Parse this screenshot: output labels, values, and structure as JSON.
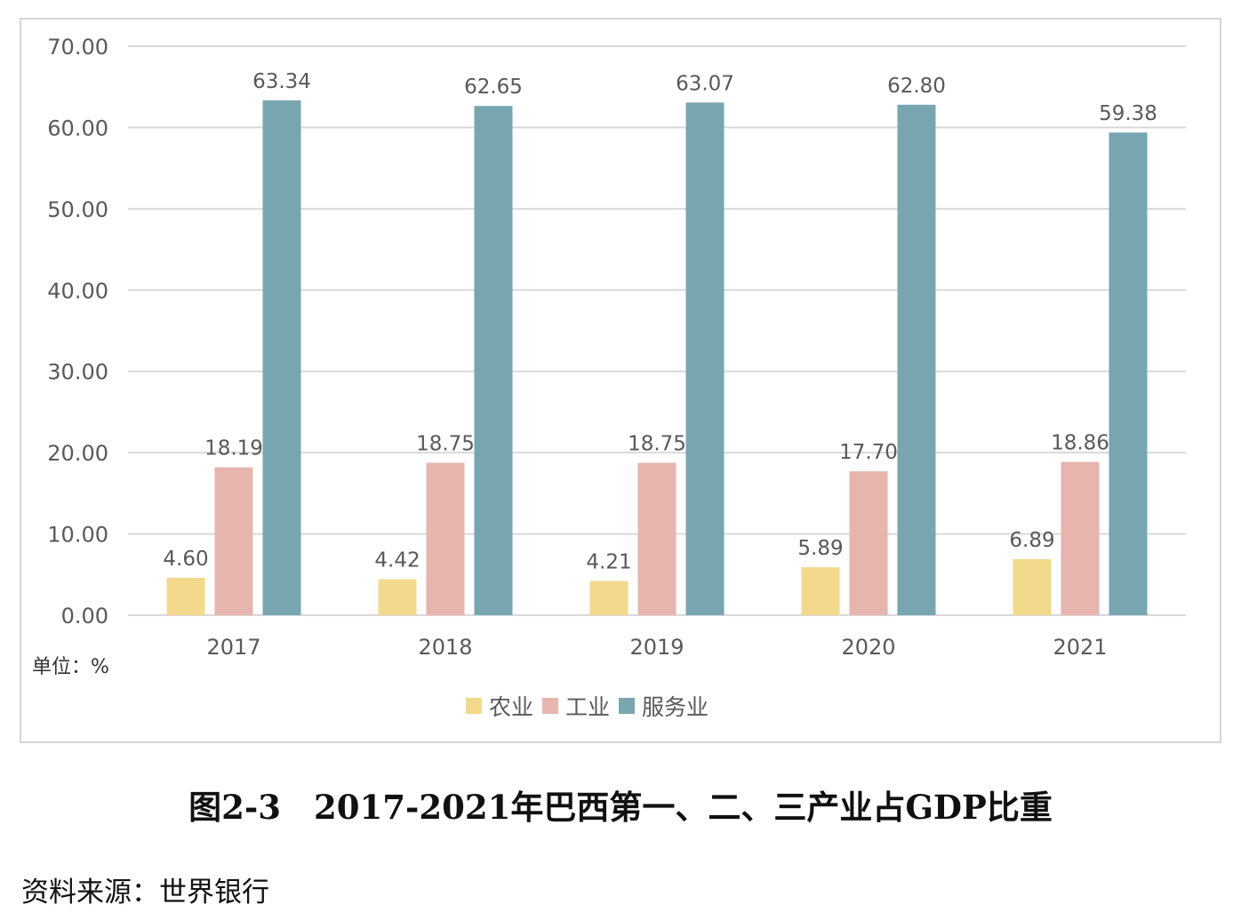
{
  "chart_data": {
    "type": "bar",
    "categories": [
      "2017",
      "2018",
      "2019",
      "2020",
      "2021"
    ],
    "series": [
      {
        "name": "农业",
        "values": [
          4.6,
          4.42,
          4.21,
          5.89,
          6.89
        ],
        "labels": [
          "4.60",
          "4.42",
          "4.21",
          "5.89",
          "6.89"
        ],
        "color": "#f2d98b"
      },
      {
        "name": "工业",
        "values": [
          18.19,
          18.75,
          18.75,
          17.7,
          18.86
        ],
        "labels": [
          "18.19",
          "18.75",
          "18.75",
          "17.70",
          "18.86"
        ],
        "color": "#e6b5ae"
      },
      {
        "name": "服务业",
        "values": [
          63.34,
          62.65,
          63.07,
          62.8,
          59.38
        ],
        "labels": [
          "63.34",
          "62.65",
          "63.07",
          "62.80",
          "59.38"
        ],
        "color": "#77a6b0"
      }
    ],
    "yticks": [
      "0.00",
      "10.00",
      "20.00",
      "30.00",
      "40.00",
      "50.00",
      "60.00",
      "70.00"
    ],
    "ylim": [
      0,
      70
    ],
    "grid": true,
    "legend_position": "bottom",
    "unit_label": "单位：%"
  },
  "caption": "图2-3　2017-2021年巴西第一、二、三产业占GDP比重",
  "source": "资料来源：世界银行",
  "colors": {
    "gridline": "#d9d9d9",
    "axis_text": "#595959"
  }
}
